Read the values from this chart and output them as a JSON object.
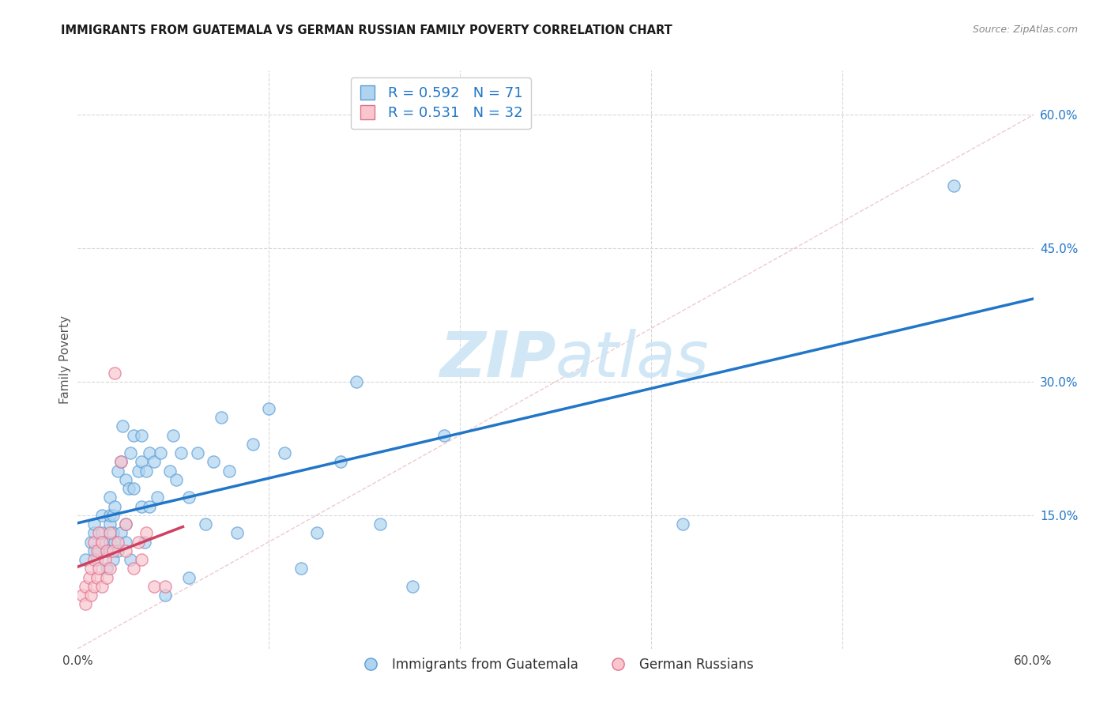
{
  "title": "IMMIGRANTS FROM GUATEMALA VS GERMAN RUSSIAN FAMILY POVERTY CORRELATION CHART",
  "source": "Source: ZipAtlas.com",
  "ylabel": "Family Poverty",
  "y_tick_labels": [
    "15.0%",
    "30.0%",
    "45.0%",
    "60.0%"
  ],
  "y_tick_values": [
    0.15,
    0.3,
    0.45,
    0.6
  ],
  "x_tick_values": [
    0.0,
    0.12,
    0.24,
    0.36,
    0.48,
    0.6
  ],
  "xlim": [
    0.0,
    0.6
  ],
  "ylim": [
    0.0,
    0.65
  ],
  "legend1_R": "0.592",
  "legend1_N": "71",
  "legend2_R": "0.531",
  "legend2_N": "32",
  "color_blue_fill": "#aed4f0",
  "color_blue_edge": "#5b9bd5",
  "color_pink_fill": "#f9c6ce",
  "color_pink_edge": "#e07090",
  "color_line_blue": "#2176c7",
  "color_line_pink": "#d04060",
  "color_diagonal": "#e8b4b8",
  "color_grid": "#d8d8d8",
  "watermark_color": "#cce5f5",
  "legend_label1": "Immigrants from Guatemala",
  "legend_label2": "German Russians",
  "guatemala_x": [
    0.005,
    0.008,
    0.01,
    0.01,
    0.01,
    0.012,
    0.013,
    0.015,
    0.015,
    0.015,
    0.018,
    0.018,
    0.02,
    0.02,
    0.02,
    0.02,
    0.02,
    0.022,
    0.022,
    0.022,
    0.023,
    0.023,
    0.025,
    0.025,
    0.027,
    0.027,
    0.028,
    0.03,
    0.03,
    0.03,
    0.032,
    0.033,
    0.033,
    0.035,
    0.035,
    0.038,
    0.04,
    0.04,
    0.04,
    0.042,
    0.043,
    0.045,
    0.045,
    0.048,
    0.05,
    0.052,
    0.055,
    0.058,
    0.06,
    0.062,
    0.065,
    0.07,
    0.07,
    0.075,
    0.08,
    0.085,
    0.09,
    0.095,
    0.1,
    0.11,
    0.12,
    0.13,
    0.14,
    0.15,
    0.165,
    0.175,
    0.19,
    0.21,
    0.23,
    0.38,
    0.55
  ],
  "guatemala_y": [
    0.1,
    0.12,
    0.11,
    0.13,
    0.14,
    0.1,
    0.11,
    0.12,
    0.13,
    0.15,
    0.09,
    0.11,
    0.11,
    0.12,
    0.14,
    0.15,
    0.17,
    0.1,
    0.13,
    0.15,
    0.12,
    0.16,
    0.11,
    0.2,
    0.13,
    0.21,
    0.25,
    0.12,
    0.14,
    0.19,
    0.18,
    0.1,
    0.22,
    0.18,
    0.24,
    0.2,
    0.16,
    0.21,
    0.24,
    0.12,
    0.2,
    0.16,
    0.22,
    0.21,
    0.17,
    0.22,
    0.06,
    0.2,
    0.24,
    0.19,
    0.22,
    0.08,
    0.17,
    0.22,
    0.14,
    0.21,
    0.26,
    0.2,
    0.13,
    0.23,
    0.27,
    0.22,
    0.09,
    0.13,
    0.21,
    0.3,
    0.14,
    0.07,
    0.24,
    0.14,
    0.52
  ],
  "german_russian_x": [
    0.003,
    0.005,
    0.005,
    0.007,
    0.008,
    0.008,
    0.01,
    0.01,
    0.01,
    0.012,
    0.012,
    0.013,
    0.013,
    0.015,
    0.015,
    0.017,
    0.018,
    0.018,
    0.02,
    0.02,
    0.022,
    0.023,
    0.025,
    0.027,
    0.03,
    0.03,
    0.035,
    0.038,
    0.04,
    0.043,
    0.048,
    0.055
  ],
  "german_russian_y": [
    0.06,
    0.05,
    0.07,
    0.08,
    0.06,
    0.09,
    0.07,
    0.1,
    0.12,
    0.08,
    0.11,
    0.09,
    0.13,
    0.07,
    0.12,
    0.1,
    0.08,
    0.11,
    0.09,
    0.13,
    0.11,
    0.31,
    0.12,
    0.21,
    0.11,
    0.14,
    0.09,
    0.12,
    0.1,
    0.13,
    0.07,
    0.07
  ]
}
